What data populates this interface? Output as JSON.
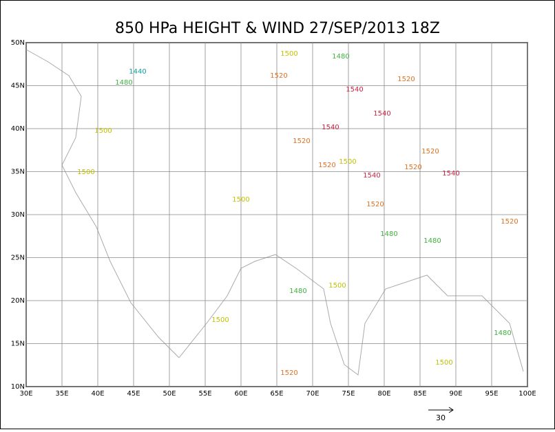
{
  "title": "850 HPa HEIGHT & WIND 27/SEP/2013 18Z",
  "lon_ticks": [
    {
      "value": 30,
      "label": "30E"
    },
    {
      "value": 35,
      "label": "35E"
    },
    {
      "value": 40,
      "label": "40E"
    },
    {
      "value": 45,
      "label": "45E"
    },
    {
      "value": 50,
      "label": "50E"
    },
    {
      "value": 55,
      "label": "55E"
    },
    {
      "value": 60,
      "label": "60E"
    },
    {
      "value": 65,
      "label": "65E"
    },
    {
      "value": 70,
      "label": "70E"
    },
    {
      "value": 75,
      "label": "75E"
    },
    {
      "value": 80,
      "label": "80E"
    },
    {
      "value": 85,
      "label": "85E"
    },
    {
      "value": 90,
      "label": "90E"
    },
    {
      "value": 95,
      "label": "95E"
    },
    {
      "value": 100,
      "label": "100E"
    }
  ],
  "lat_ticks": [
    {
      "value": 10,
      "label": "10N"
    },
    {
      "value": 15,
      "label": "15N"
    },
    {
      "value": 20,
      "label": "20N"
    },
    {
      "value": 25,
      "label": "25N"
    },
    {
      "value": 30,
      "label": "30N"
    },
    {
      "value": 35,
      "label": "35N"
    },
    {
      "value": 40,
      "label": "40N"
    },
    {
      "value": 45,
      "label": "45N"
    },
    {
      "value": 50,
      "label": "50N"
    }
  ],
  "contour_labels": [
    1440,
    1480,
    1480,
    1480,
    1480,
    1480,
    1480,
    1500,
    1500,
    1500,
    1500,
    1500,
    1500,
    1500,
    1500,
    1520,
    1520,
    1520,
    1520,
    1520,
    1520,
    1520,
    1520,
    1520,
    1540,
    1540,
    1540,
    1540,
    1540
  ],
  "reference_vector": "30"
}
